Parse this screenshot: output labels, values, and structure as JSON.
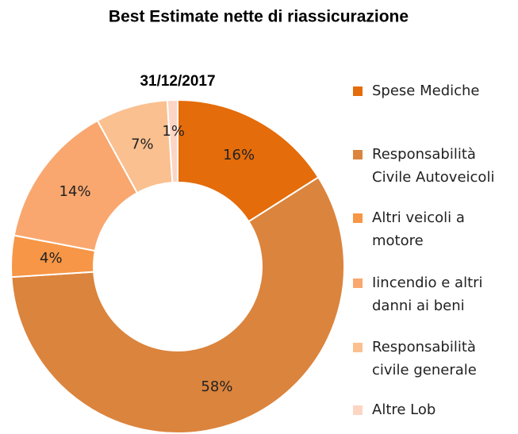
{
  "chart_data": {
    "type": "donut",
    "title": "Best Estimate nette di riassicurazione",
    "subtitle": "31/12/2017",
    "categories": [
      "Spese Mediche",
      "Responsabilità Civile Autoveicoli",
      "Altri veicoli a motore",
      "Iincendio e altri danni ai beni",
      "Responsabilità civile generale",
      "Altre Lob"
    ],
    "values": [
      16,
      58,
      4,
      14,
      7,
      1
    ],
    "value_labels": [
      "16%",
      "58%",
      "4%",
      "14%",
      "7%",
      "1%"
    ],
    "colors": [
      "#E46C0A",
      "#DB843D",
      "#F79646",
      "#F9A76F",
      "#FAC090",
      "#FCD5C4"
    ],
    "legend": "right"
  }
}
